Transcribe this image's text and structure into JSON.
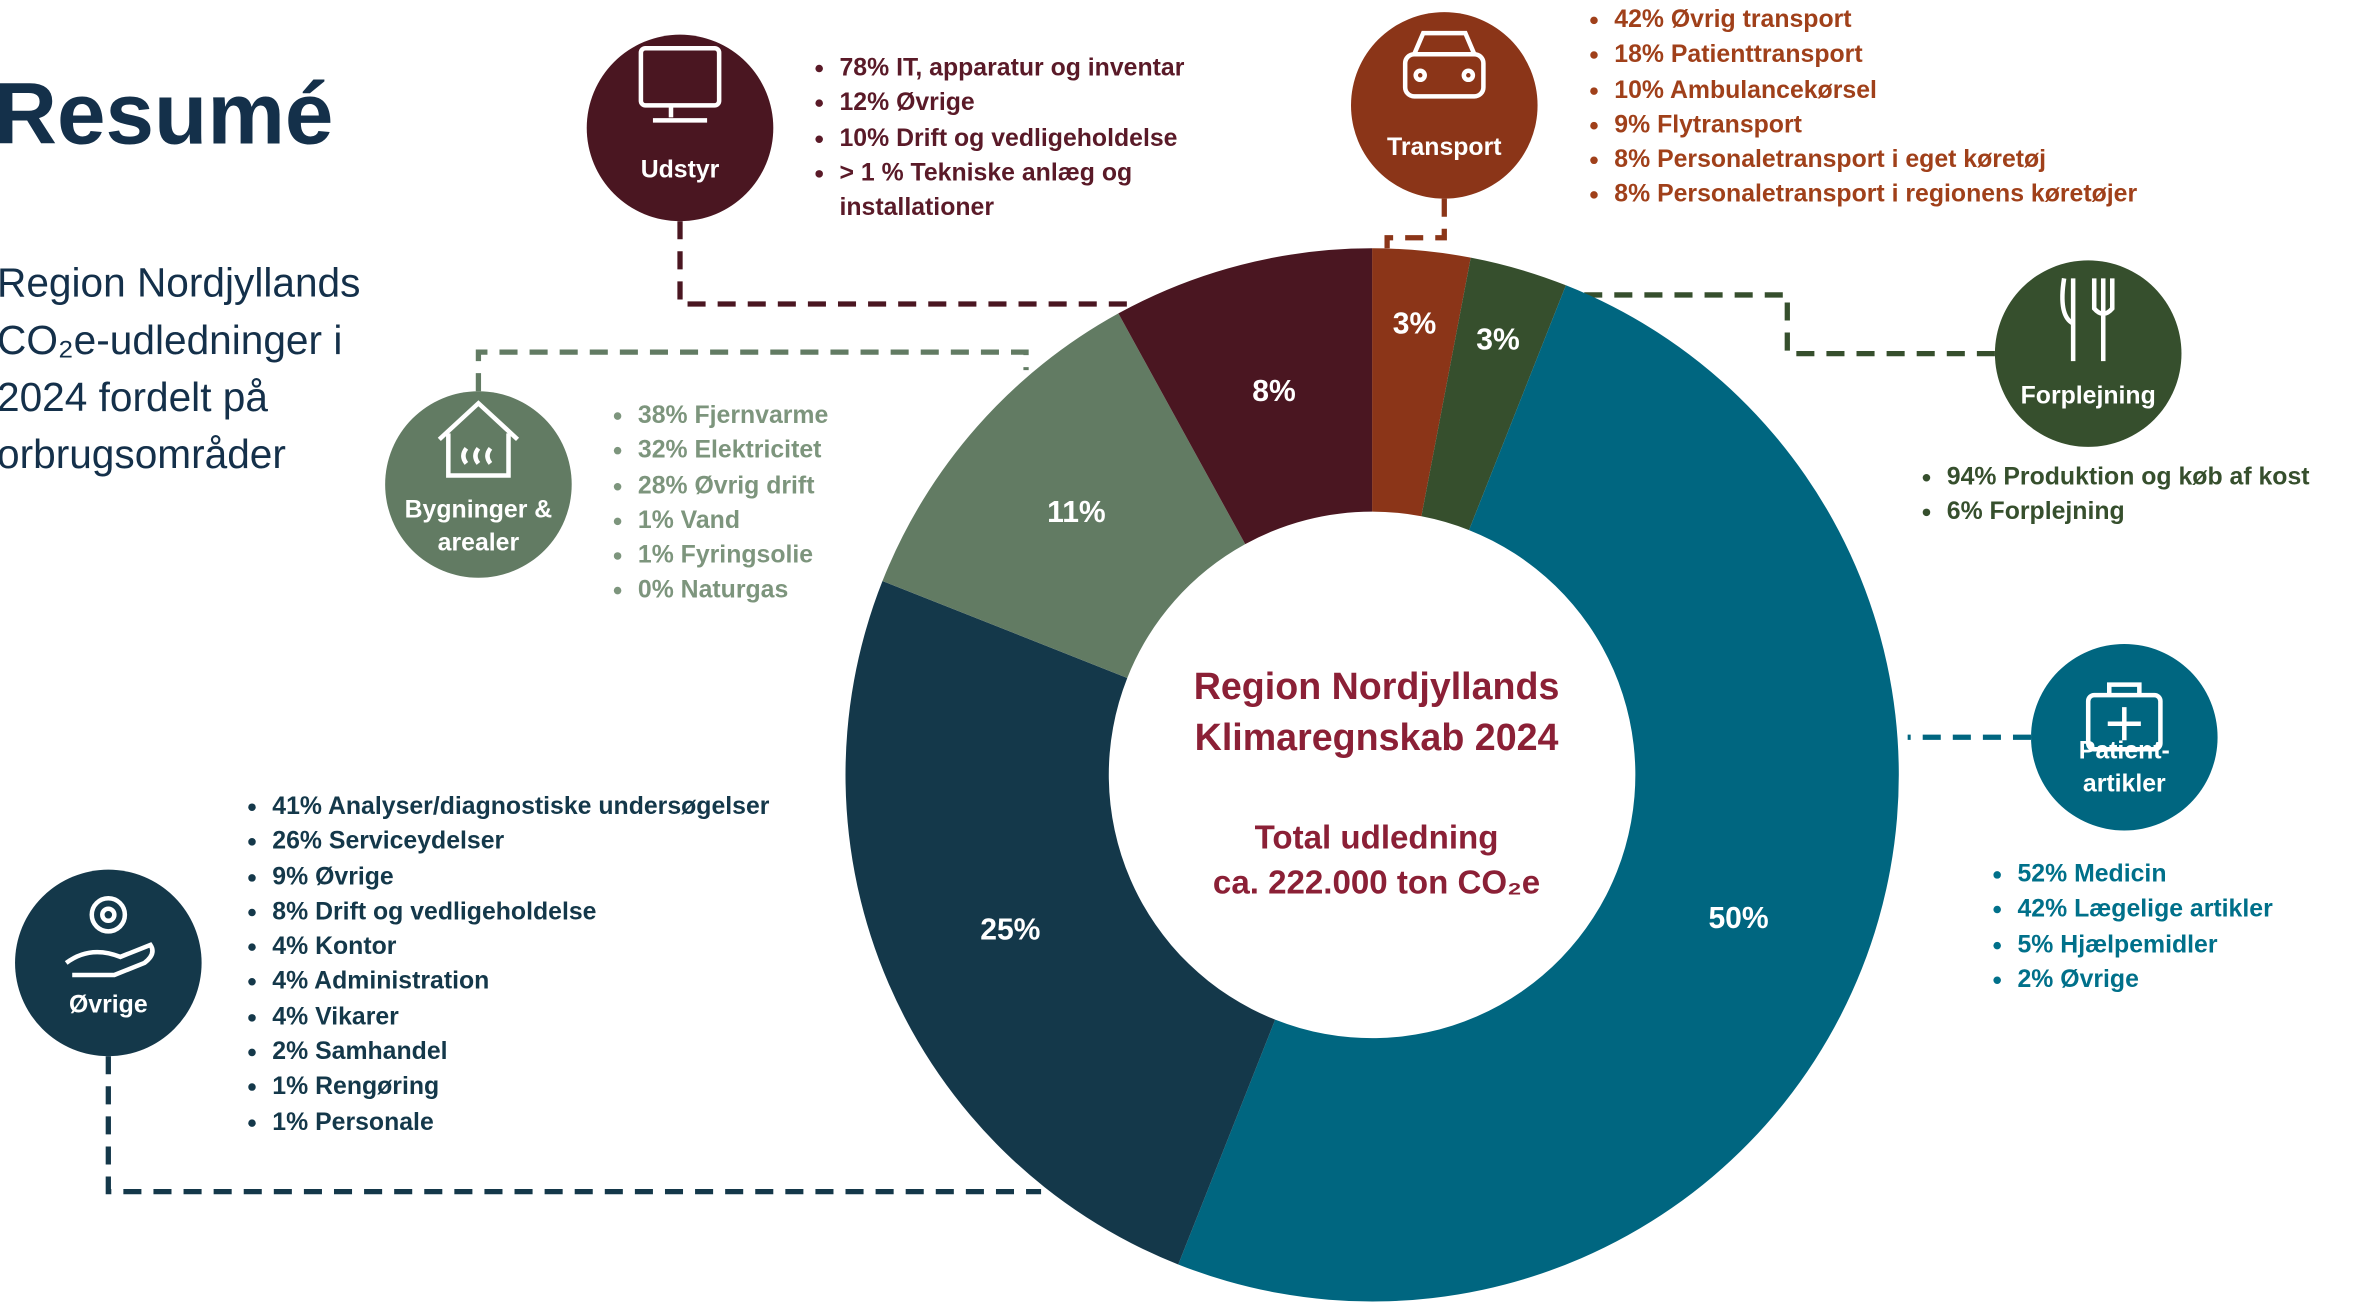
{
  "header": {
    "title": "Resumé",
    "description": [
      "Region Nordjyllands",
      "CO₂e-udledninger i",
      "2024 fordelt på",
      "orbrugsområder"
    ]
  },
  "chart_data": {
    "type": "donut",
    "center_title": [
      "Region Nordjyllands",
      "Klimaregnskab 2024"
    ],
    "center_subtitle": [
      "Total udledning",
      "ca. 222.000 ton CO₂e"
    ],
    "categories": [
      "Transport",
      "Forplejning",
      "Patient-artikler",
      "Øvrige",
      "Bygninger & arealer",
      "Udstyr"
    ],
    "values": [
      3,
      3,
      50,
      25,
      11,
      8
    ],
    "value_labels": [
      "3%",
      "3%",
      "50%",
      "25%",
      "11%",
      "8%"
    ],
    "colors": [
      "#8b3518",
      "#364f2d",
      "#006680",
      "#14384a",
      "#627b63",
      "#4a1621"
    ],
    "breakdowns": [
      [
        "42% Øvrig transport",
        "18% Patienttransport",
        "10% Ambulancekørsel",
        "9% Flytransport",
        "8% Personaletransport i eget køretøj",
        "8% Personaletransport i regionens køretøjer"
      ],
      [
        "94% Produktion og køb af kost",
        "6% Forplejning"
      ],
      [
        "52% Medicin",
        "42% Lægelige artikler",
        "5% Hjælpemidler",
        "2% Øvrige"
      ],
      [
        "41%  Analyser/diagnostiske undersøgelser",
        "26% Serviceydelser",
        "9% Øvrige",
        "8% Drift og vedligeholdelse",
        "4% Kontor",
        "4% Administration",
        "4% Vikarer",
        "2% Samhandel",
        "1% Rengøring",
        "1% Personale"
      ],
      [
        "38% Fjernvarme",
        "32% Elektricitet",
        "28% Øvrig drift",
        "1% Vand",
        "1% Fyringsolie",
        "0% Naturgas"
      ],
      [
        "78% IT, apparatur og inventar",
        "12% Øvrige",
        "10% Drift og vedligeholdelse",
        "> 1 % Tekniske anlæg og installationer"
      ]
    ]
  }
}
